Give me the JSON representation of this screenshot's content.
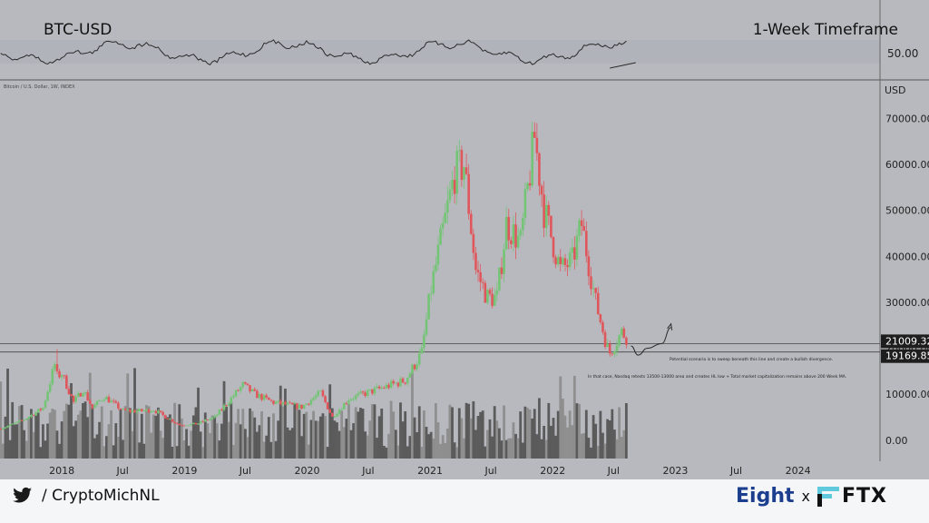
{
  "header": {
    "symbol": "BTC-USD",
    "timeframe": "1-Week Timeframe"
  },
  "rsi_panel": {
    "level_label": "50.00"
  },
  "legend_line": {
    "text": "Bitcoin / U.S. Dollar, 1W, INDEX"
  },
  "chart_data": {
    "type": "candlestick",
    "title": "BTC-USD",
    "subtitle": "1-Week Timeframe",
    "ylabel": "USD",
    "ylim": [
      -4000,
      76000
    ],
    "yticks": [
      0,
      10000,
      20000,
      30000,
      40000,
      50000,
      60000,
      70000
    ],
    "ytick_labels": [
      "0.00",
      "10000.00",
      "20000.00",
      "30000.00",
      "40000.00",
      "50000.00",
      "60000.00",
      "70000.00"
    ],
    "x_tick_labels": [
      "2018",
      "Jul",
      "2019",
      "Jul",
      "2020",
      "Jul",
      "2021",
      "Jul",
      "2022",
      "Jul",
      "2023",
      "Jul",
      "2024"
    ],
    "xlim": [
      "2017-07-01",
      "2024-09-01"
    ],
    "price_badges": [
      {
        "value": 21009.32,
        "label": "21009.32",
        "color": "#1e1e1e"
      },
      {
        "value": 19169.85,
        "label": "19169.85",
        "color": "#1e1e1e"
      }
    ],
    "horizontal_lines": [
      21009.32,
      19169.85
    ],
    "series": [
      {
        "kind": "price_close_weekly_anchors",
        "points": [
          [
            "2017-07-03",
            2500
          ],
          [
            "2017-09-04",
            4200
          ],
          [
            "2017-11-06",
            7000
          ],
          [
            "2017-12-11",
            16500
          ],
          [
            "2017-12-18",
            14000
          ],
          [
            "2018-01-01",
            14500
          ],
          [
            "2018-02-05",
            8200
          ],
          [
            "2018-03-05",
            11000
          ],
          [
            "2018-04-02",
            7000
          ],
          [
            "2018-05-07",
            9500
          ],
          [
            "2018-07-02",
            6400
          ],
          [
            "2018-08-13",
            6300
          ],
          [
            "2018-10-01",
            6600
          ],
          [
            "2018-11-19",
            4500
          ],
          [
            "2018-12-17",
            3300
          ],
          [
            "2019-02-04",
            3500
          ],
          [
            "2019-04-01",
            5000
          ],
          [
            "2019-06-24",
            12000
          ],
          [
            "2019-07-29",
            10000
          ],
          [
            "2019-09-23",
            8200
          ],
          [
            "2019-12-16",
            7200
          ],
          [
            "2020-02-10",
            10300
          ],
          [
            "2020-03-16",
            5000
          ],
          [
            "2020-05-04",
            9000
          ],
          [
            "2020-07-27",
            11000
          ],
          [
            "2020-10-19",
            13000
          ],
          [
            "2020-12-07",
            19000
          ],
          [
            "2021-01-04",
            33000
          ],
          [
            "2021-02-15",
            48000
          ],
          [
            "2021-03-15",
            58000
          ],
          [
            "2021-04-12",
            60000
          ],
          [
            "2021-05-17",
            37000
          ],
          [
            "2021-06-21",
            31000
          ],
          [
            "2021-07-19",
            31000
          ],
          [
            "2021-08-16",
            47000
          ],
          [
            "2021-09-27",
            43000
          ],
          [
            "2021-11-08",
            66000
          ],
          [
            "2021-12-06",
            50000
          ],
          [
            "2022-01-24",
            37000
          ],
          [
            "2022-02-28",
            39000
          ],
          [
            "2022-03-28",
            47000
          ],
          [
            "2022-05-09",
            30000
          ],
          [
            "2022-06-13",
            20000
          ],
          [
            "2022-06-20",
            19000
          ],
          [
            "2022-07-25",
            23500
          ],
          [
            "2022-08-08",
            22500
          ]
        ],
        "highs_labeled": {
          "peak_2017": 19800,
          "peak_2021": 69000
        }
      }
    ],
    "projection": {
      "description": "drawn forward path",
      "points": [
        [
          "2022-08-22",
          20500
        ],
        [
          "2022-09-12",
          18500
        ],
        [
          "2022-10-10",
          20000
        ],
        [
          "2022-11-21",
          21000
        ],
        [
          "2022-12-19",
          24500
        ]
      ]
    },
    "annotations": [
      {
        "id": "note1",
        "text": "Potential scenario is to sweep beneath this line and create a bullish divergence."
      },
      {
        "id": "note2",
        "text": "In that case, Nasdaq retests 13500-13000 area and creates HL low + Total market capitalization remains above 200 Week MA."
      }
    ],
    "rsi_panel": {
      "reference_level": 50,
      "divergence_trendline": true
    }
  },
  "footer": {
    "handle": "/ CryptoMichNL",
    "brand_left": "Eight",
    "brand_sep": "x",
    "brand_right": "FTX"
  },
  "colors": {
    "up": "#74c476",
    "down": "#e0575b",
    "volume_dark": "#555555",
    "volume_light": "#8c8c8c",
    "background": "#b8b9bf",
    "brand_blue": "#1c3e8f"
  }
}
